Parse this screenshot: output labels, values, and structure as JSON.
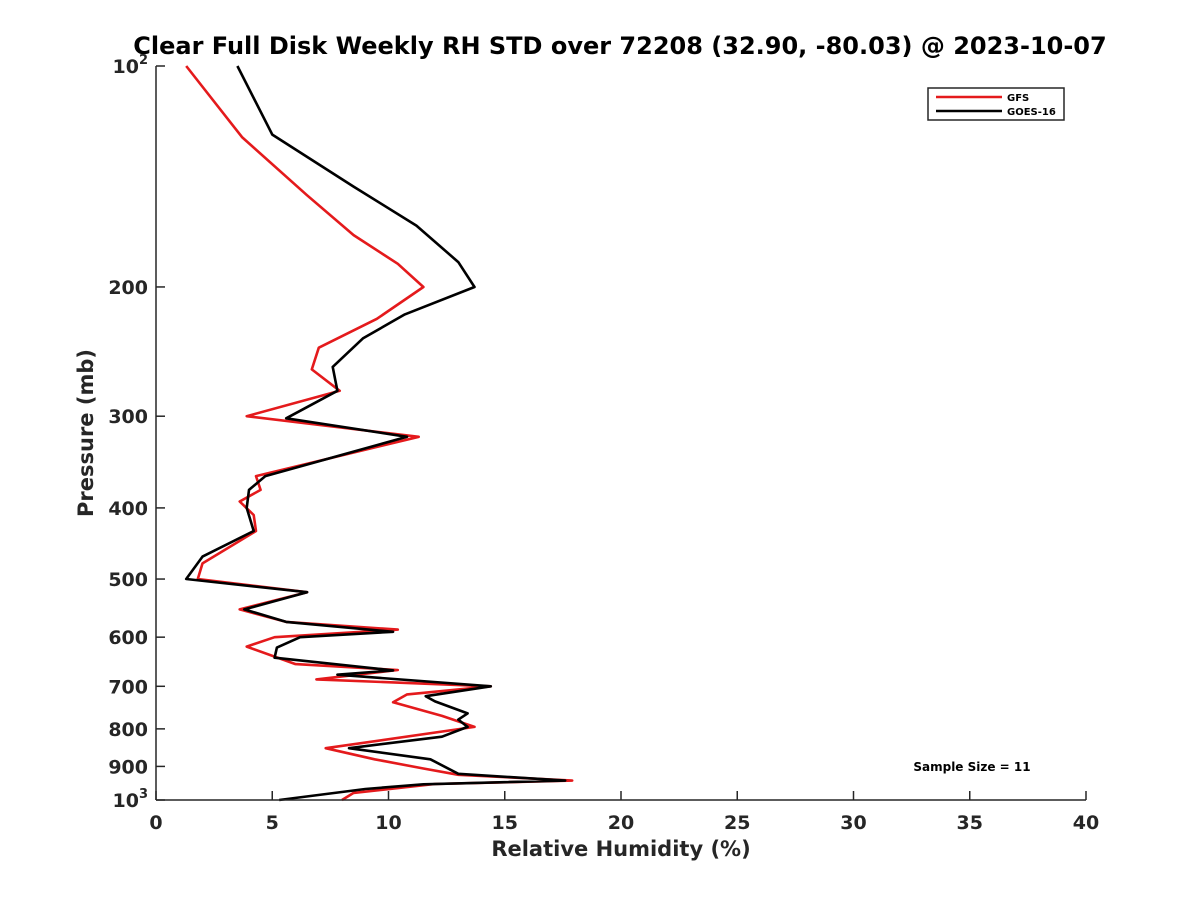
{
  "chart_data": {
    "type": "line",
    "title": "Clear Full Disk Weekly RH STD over 72208 (32.90, -80.03) @ 2023-10-07",
    "xlabel": "Relative Humidity (%)",
    "ylabel": "Pressure (mb)",
    "xlim": [
      0,
      40
    ],
    "ylim": [
      100,
      1000
    ],
    "y_scale": "log",
    "y_reversed": true,
    "grid": false,
    "legend_position": "top-right",
    "x_ticks": [
      "0",
      "5",
      "10",
      "15",
      "20",
      "25",
      "30",
      "35",
      "40"
    ],
    "x_tick_values": [
      0,
      5,
      10,
      15,
      20,
      25,
      30,
      35,
      40
    ],
    "y_ticks": [
      {
        "value": 100,
        "base": "10",
        "exp": "2"
      },
      {
        "value": 200,
        "base": "200",
        "exp": ""
      },
      {
        "value": 300,
        "base": "300",
        "exp": ""
      },
      {
        "value": 400,
        "base": "400",
        "exp": ""
      },
      {
        "value": 500,
        "base": "500",
        "exp": ""
      },
      {
        "value": 600,
        "base": "600",
        "exp": ""
      },
      {
        "value": 700,
        "base": "700",
        "exp": ""
      },
      {
        "value": 800,
        "base": "800",
        "exp": ""
      },
      {
        "value": 900,
        "base": "900",
        "exp": ""
      },
      {
        "value": 1000,
        "base": "10",
        "exp": "3"
      }
    ],
    "annotation": "Sample Size = 11",
    "series": [
      {
        "name": "GFS",
        "color": "#e41a1c",
        "points": [
          [
            1.3,
            100
          ],
          [
            3.7,
            125
          ],
          [
            6.5,
            150
          ],
          [
            8.5,
            170
          ],
          [
            10.4,
            186
          ],
          [
            11.5,
            200
          ],
          [
            9.5,
            221
          ],
          [
            7.0,
            242
          ],
          [
            6.7,
            259
          ],
          [
            7.9,
            277
          ],
          [
            3.9,
            300
          ],
          [
            11.3,
            320
          ],
          [
            4.3,
            362
          ],
          [
            4.5,
            378
          ],
          [
            3.6,
            392
          ],
          [
            4.2,
            409
          ],
          [
            4.3,
            430
          ],
          [
            2.0,
            476
          ],
          [
            1.8,
            500
          ],
          [
            6.5,
            521
          ],
          [
            3.6,
            550
          ],
          [
            5.6,
            572
          ],
          [
            10.4,
            586
          ],
          [
            5.1,
            600
          ],
          [
            3.9,
            618
          ],
          [
            6.0,
            653
          ],
          [
            10.4,
            665
          ],
          [
            6.9,
            685
          ],
          [
            14.4,
            700
          ],
          [
            10.8,
            718
          ],
          [
            10.2,
            736
          ],
          [
            12.3,
            768
          ],
          [
            13.7,
            795
          ],
          [
            7.3,
            850
          ],
          [
            9.4,
            880
          ],
          [
            11.5,
            906
          ],
          [
            13.0,
            924
          ],
          [
            17.9,
            941
          ],
          [
            12.0,
            951
          ],
          [
            8.5,
            978
          ],
          [
            8.0,
            1000
          ]
        ]
      },
      {
        "name": "GOES-16",
        "color": "#000000",
        "points": [
          [
            3.5,
            100
          ],
          [
            5.0,
            124
          ],
          [
            8.5,
            146
          ],
          [
            11.2,
            165
          ],
          [
            13.0,
            185
          ],
          [
            13.7,
            200
          ],
          [
            10.7,
            218
          ],
          [
            8.9,
            235
          ],
          [
            7.6,
            257
          ],
          [
            7.8,
            277
          ],
          [
            5.6,
            302
          ],
          [
            10.8,
            320
          ],
          [
            4.7,
            362
          ],
          [
            4.0,
            378
          ],
          [
            3.9,
            400
          ],
          [
            4.2,
            430
          ],
          [
            2.0,
            466
          ],
          [
            1.3,
            500
          ],
          [
            6.5,
            521
          ],
          [
            3.8,
            550
          ],
          [
            5.6,
            572
          ],
          [
            10.2,
            590
          ],
          [
            6.2,
            600
          ],
          [
            5.2,
            620
          ],
          [
            5.1,
            640
          ],
          [
            10.2,
            666
          ],
          [
            7.8,
            675
          ],
          [
            14.4,
            700
          ],
          [
            11.6,
            722
          ],
          [
            12.0,
            734
          ],
          [
            13.4,
            762
          ],
          [
            13.0,
            777
          ],
          [
            13.4,
            795
          ],
          [
            12.3,
            820
          ],
          [
            8.3,
            850
          ],
          [
            11.8,
            880
          ],
          [
            13.0,
            921
          ],
          [
            17.6,
            941
          ],
          [
            11.5,
            952
          ],
          [
            9.0,
            966
          ],
          [
            5.3,
            1000
          ]
        ]
      }
    ]
  }
}
